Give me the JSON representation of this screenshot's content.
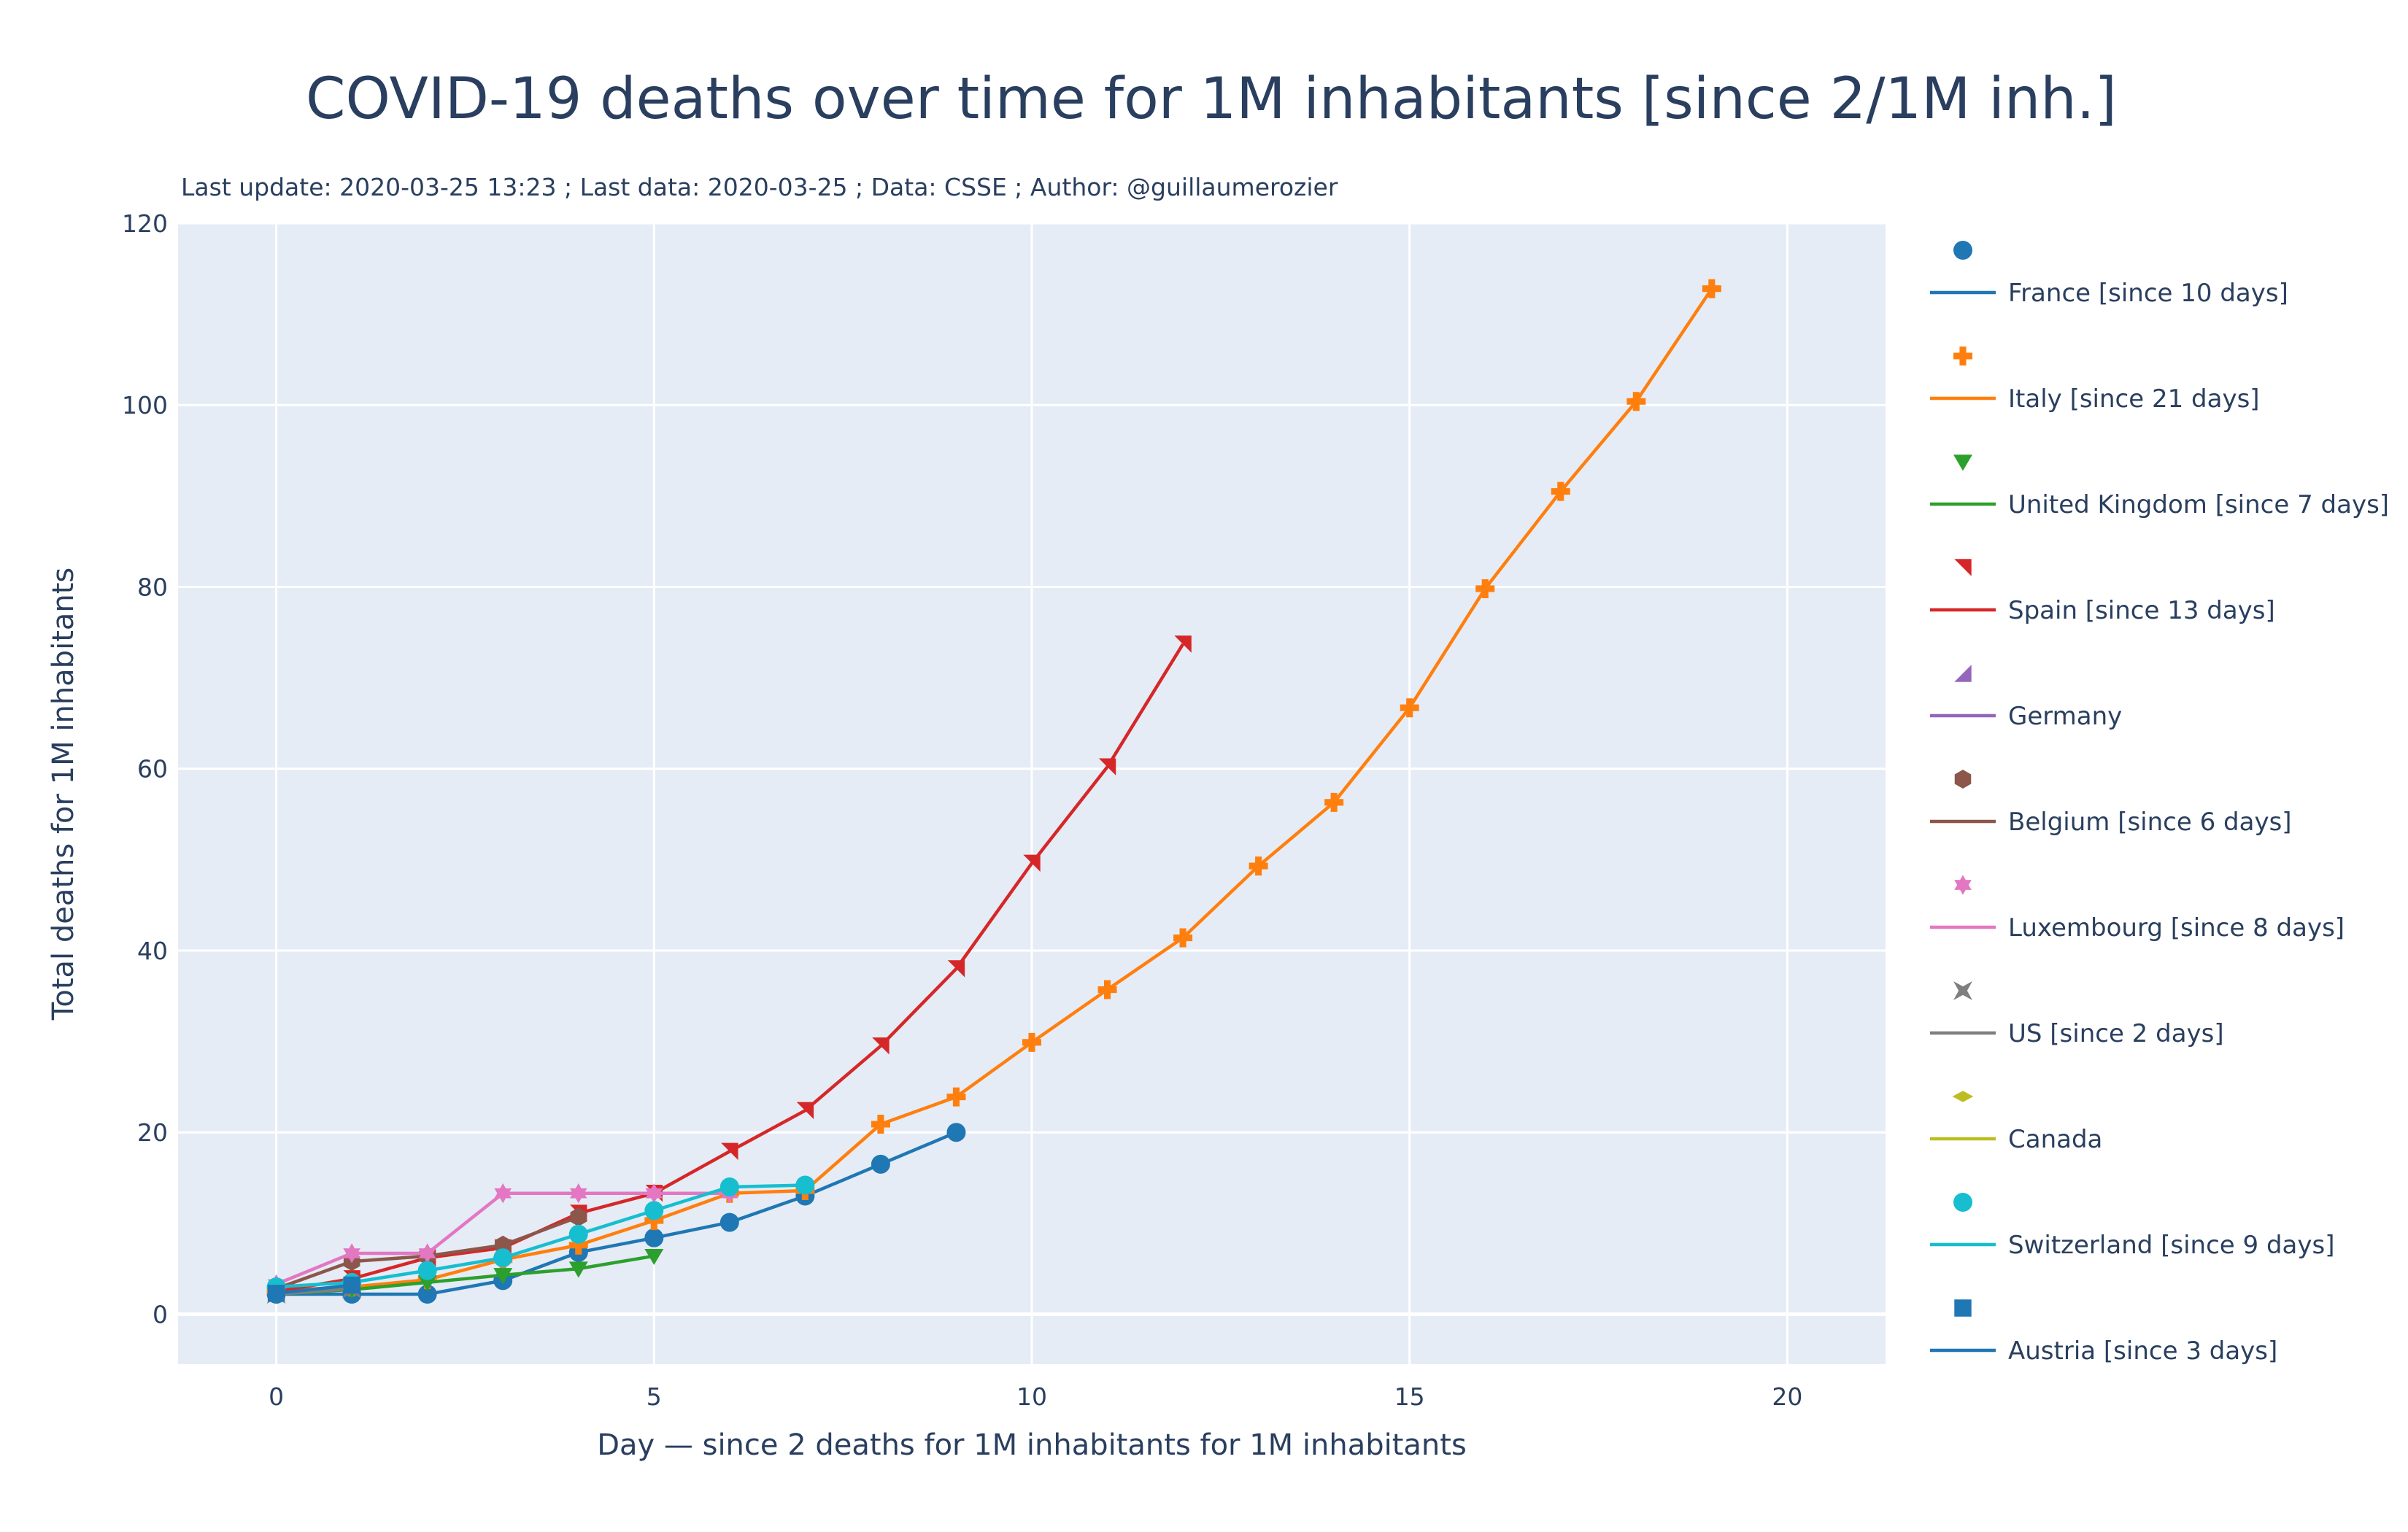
{
  "chart_data": {
    "type": "line",
    "title": "COVID-19 deaths over time for 1M inhabitants  [since 2/1M inh.]",
    "subtitle": "Last update: 2020-03-25 13:23 ; Last data: 2020-03-25 ; Data: CSSE ; Author: @guillaumerozier",
    "xlabel": "Day — since 2 deaths for 1M inhabitants for 1M inhabitants",
    "ylabel": "Total deaths for 1M inhabitants",
    "xlim": [
      -1.3,
      21.3
    ],
    "ylim": [
      -5.5,
      120
    ],
    "xticks": [
      0,
      5,
      10,
      15,
      20
    ],
    "yticks": [
      0,
      20,
      40,
      60,
      80,
      100,
      120
    ],
    "grid": true,
    "legend_position": "right",
    "plot_background": "#e5ecf6",
    "series": [
      {
        "name": "France [since 10 days]",
        "color": "#1f77b4",
        "marker": "circle",
        "x": [
          0,
          1,
          2,
          3,
          4,
          5,
          6,
          7,
          8,
          9
        ],
        "y": [
          2.2,
          2.2,
          2.2,
          3.7,
          6.8,
          8.4,
          10.1,
          13.0,
          16.5,
          20.0
        ]
      },
      {
        "name": "Italy [since 21 days]",
        "color": "#ff7f0e",
        "marker": "cross",
        "x": [
          0,
          1,
          2,
          3,
          4,
          5,
          6,
          7,
          8,
          9,
          10,
          11,
          12,
          13,
          14,
          15,
          16,
          17,
          18,
          19
        ],
        "y": [
          2.6,
          3.0,
          3.8,
          6.0,
          7.6,
          10.3,
          13.3,
          13.6,
          20.9,
          23.9,
          29.9,
          35.7,
          41.4,
          49.3,
          56.3,
          66.7,
          79.8,
          90.5,
          100.4,
          112.8
        ]
      },
      {
        "name": "United Kingdom [since 7 days]",
        "color": "#2ca02c",
        "marker": "triangle-down",
        "x": [
          0,
          1,
          2,
          3,
          4,
          5
        ],
        "y": [
          2.2,
          2.7,
          3.5,
          4.3,
          5.0,
          6.4
        ]
      },
      {
        "name": "Spain [since 13 days]",
        "color": "#d62728",
        "marker": "triangle-ne",
        "x": [
          0,
          1,
          2,
          3,
          4,
          5,
          6,
          7,
          8,
          9,
          10,
          11,
          12
        ],
        "y": [
          2.5,
          3.9,
          6.2,
          7.3,
          11.1,
          13.3,
          17.9,
          22.4,
          29.5,
          38.0,
          49.6,
          60.2,
          73.7
        ]
      },
      {
        "name": "Germany",
        "color": "#9467bd",
        "marker": "triangle-se",
        "x": [],
        "y": []
      },
      {
        "name": "Belgium [since 6 days]",
        "color": "#8c564b",
        "marker": "hexagon",
        "x": [
          0,
          1,
          2,
          3,
          4
        ],
        "y": [
          2.8,
          5.8,
          6.4,
          7.6,
          10.7
        ]
      },
      {
        "name": "Luxembourg [since 8 days]",
        "color": "#e377c2",
        "marker": "hexagram",
        "x": [
          0,
          1,
          2,
          3,
          4,
          5,
          6
        ],
        "y": [
          3.3,
          6.7,
          6.7,
          13.3,
          13.3,
          13.3,
          13.3
        ]
      },
      {
        "name": "US [since 2 days]",
        "color": "#7f7f7f",
        "marker": "star-square",
        "x": [
          0,
          1
        ],
        "y": [
          2.2,
          2.8
        ]
      },
      {
        "name": "Canada",
        "color": "#bcbd22",
        "marker": "diamond-wide",
        "x": [],
        "y": []
      },
      {
        "name": "Switzerland [since 9 days]",
        "color": "#17becf",
        "marker": "circle",
        "x": [
          0,
          1,
          2,
          3,
          4,
          5,
          6,
          7
        ],
        "y": [
          3.0,
          3.5,
          4.8,
          6.2,
          8.8,
          11.4,
          14.0,
          14.2
        ]
      },
      {
        "name": "Austria [since 3 days]",
        "color": "#1f77b4",
        "marker": "square",
        "x": [
          0,
          1
        ],
        "y": [
          2.3,
          3.2
        ]
      }
    ]
  }
}
